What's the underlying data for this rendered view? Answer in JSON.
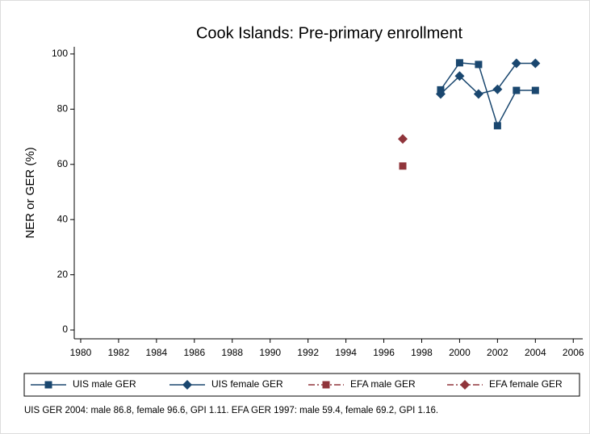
{
  "chart_data": {
    "type": "line",
    "title": "Cook Islands: Pre-primary enrollment",
    "y_label": "NER or GER (%)",
    "note": "UIS GER 2004: male 86.8, female 96.6, GPI 1.11. EFA GER 1997: male 59.4, female 69.2, GPI 1.16.",
    "x": [
      1997,
      1999,
      2000,
      2001,
      2002,
      2003,
      2004
    ],
    "series": [
      {
        "name": "UIS male GER",
        "color": "#1a476f",
        "marker": "square",
        "values": [
          null,
          87,
          96.8,
          96.2,
          74,
          86.8,
          86.8
        ]
      },
      {
        "name": "UIS female GER",
        "color": "#1a476f",
        "marker": "diamond",
        "values": [
          null,
          85.5,
          92,
          85.5,
          87.2,
          96.6,
          96.6
        ]
      },
      {
        "name": "EFA male GER",
        "color": "#90353b",
        "marker": "square",
        "values": [
          59.4,
          null,
          null,
          null,
          null,
          null,
          null
        ]
      },
      {
        "name": "EFA female GER",
        "color": "#90353b",
        "marker": "diamond",
        "values": [
          69.2,
          null,
          null,
          null,
          null,
          null,
          null
        ]
      }
    ],
    "xlim": [
      1979.66,
      2006.5
    ],
    "ylim": [
      -3.2,
      102.6
    ],
    "xticks": [
      1980,
      1982,
      1984,
      1986,
      1988,
      1990,
      1992,
      1994,
      1996,
      1998,
      2000,
      2002,
      2004,
      2006
    ],
    "yticks": [
      0,
      20,
      40,
      60,
      80,
      100
    ]
  }
}
